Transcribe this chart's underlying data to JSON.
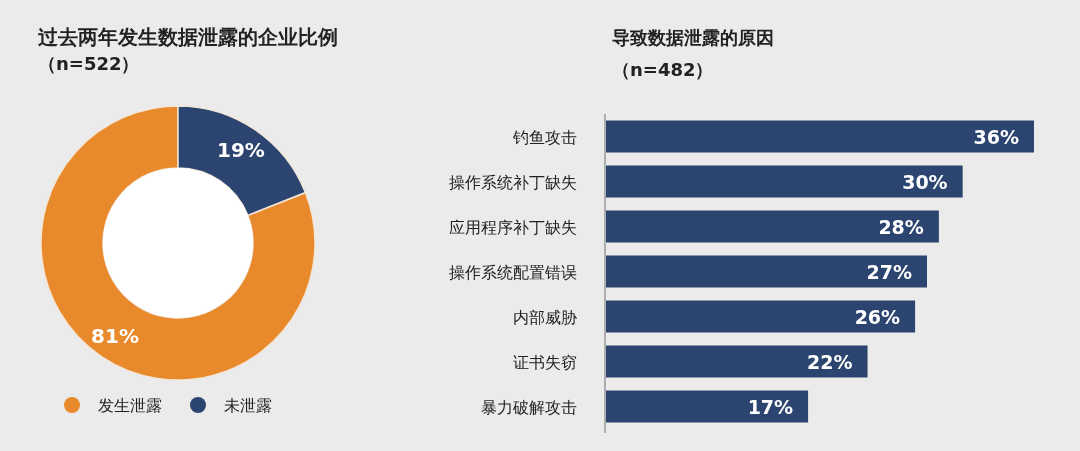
{
  "chart_data": [
    {
      "type": "donut",
      "title": "过去两年发生数据泄露的企业比例",
      "subtitle": "（n=522）",
      "categories": [
        "发生泄露",
        "未泄露"
      ],
      "values": [
        81,
        19
      ],
      "colors": [
        "#e8892b",
        "#2b4570"
      ],
      "value_labels": [
        "81%",
        "19%"
      ],
      "legend": "bottom"
    },
    {
      "type": "bar",
      "orientation": "horizontal",
      "title": "导致数据泄露的原因",
      "subtitle": "（n=482）",
      "categories": [
        "钓鱼攻击",
        "操作系统补丁缺失",
        "应用程序补丁缺失",
        "操作系统配置错误",
        "内部威胁",
        "证书失窃",
        "暴力破解攻击"
      ],
      "values": [
        36,
        30,
        28,
        27,
        26,
        22,
        17
      ],
      "color": "#2b4570",
      "value_labels": [
        "36%",
        "30%",
        "28%",
        "27%",
        "26%",
        "22%",
        "17%"
      ]
    }
  ]
}
